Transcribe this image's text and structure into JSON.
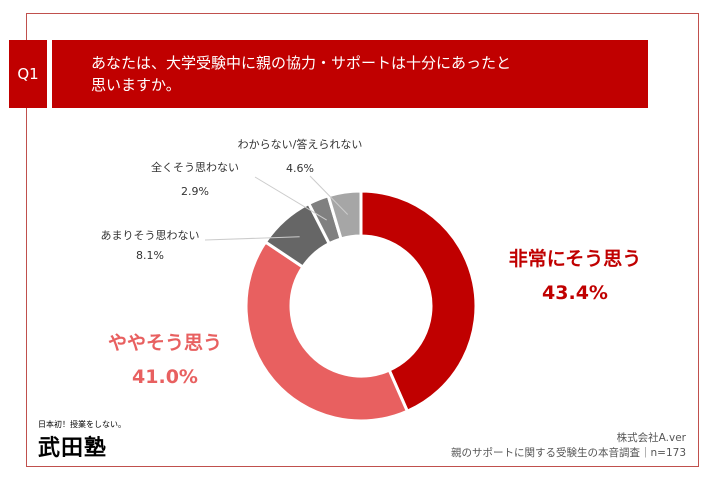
{
  "question": {
    "number": "Q1",
    "text": "あなたは、大学受験中に親の協力・サポートは十分にあったと\n思いますか。"
  },
  "chart_data": {
    "type": "pie",
    "donut": true,
    "start": "top, clockwise",
    "categories": [
      "非常にそう思う",
      "ややそう思う",
      "あまりそう思わない",
      "全くそう思わない",
      "わからない/答えられない"
    ],
    "values": [
      43.4,
      41.0,
      8.1,
      2.9,
      4.6
    ],
    "labels": [
      "43.4%",
      "41.0%",
      "8.1%",
      "2.9%",
      "4.6%"
    ],
    "colors": [
      "#c00000",
      "#e86060",
      "#666666",
      "#808080",
      "#a6a6a6"
    ]
  },
  "footer": {
    "company": "株式会社A.ver",
    "survey": "親のサポートに関する受験生の本音調査｜n=173"
  },
  "logo": {
    "tagline": "日本初！授業をしない。",
    "name": "武田塾"
  }
}
